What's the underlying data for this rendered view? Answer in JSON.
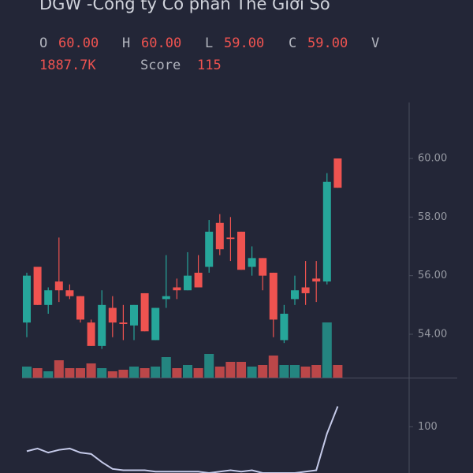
{
  "chart_data": {
    "type": "candlestick",
    "title": "DGW -Công ty Cổ phần Thế Giới Số",
    "ohlc_header": [
      {
        "key": "O",
        "value": "60.00"
      },
      {
        "key": "H",
        "value": "60.00"
      },
      {
        "key": "L",
        "value": "59.00"
      },
      {
        "key": "C",
        "value": "59.00"
      }
    ],
    "volume_key": "V",
    "volume_label": "1887.7K",
    "up_color": "#26a69a",
    "down_color": "#ef5350",
    "open": [
      54.4,
      56.3,
      55.0,
      55.8,
      55.5,
      55.3,
      54.4,
      53.6,
      54.9,
      54.4,
      54.3,
      55.4,
      53.8,
      55.2,
      55.6,
      55.5,
      56.1,
      56.3,
      57.8,
      57.3,
      57.5,
      56.3,
      56.6,
      56.1,
      53.8,
      55.2,
      55.6,
      55.9,
      55.8,
      60.0
    ],
    "high": [
      56.1,
      56.3,
      55.6,
      57.3,
      55.7,
      55.3,
      54.5,
      55.5,
      55.3,
      55.0,
      55.0,
      55.4,
      54.9,
      56.7,
      55.9,
      56.8,
      56.7,
      57.9,
      58.1,
      58.0,
      57.5,
      57.0,
      56.6,
      56.1,
      55.0,
      56.0,
      56.5,
      56.5,
      59.5,
      60.0
    ],
    "low": [
      53.9,
      55.0,
      54.7,
      55.1,
      55.2,
      54.4,
      53.6,
      53.5,
      53.9,
      53.8,
      53.8,
      54.1,
      53.8,
      54.9,
      55.2,
      55.5,
      55.6,
      56.1,
      56.7,
      56.5,
      56.2,
      56.0,
      55.5,
      53.9,
      53.7,
      55.0,
      55.0,
      55.1,
      55.7,
      59.0
    ],
    "close": [
      56.0,
      55.0,
      55.5,
      55.5,
      55.3,
      54.5,
      53.6,
      55.0,
      54.4,
      54.35,
      55.0,
      54.1,
      54.9,
      55.3,
      55.5,
      56.0,
      55.6,
      57.5,
      56.9,
      57.25,
      56.2,
      56.6,
      56.0,
      54.5,
      54.7,
      55.5,
      55.4,
      55.8,
      59.2,
      59.0
    ],
    "volume": [
      1652,
      1416,
      944,
      2596,
      1416,
      1416,
      2124,
      1416,
      944,
      1180,
      1652,
      1416,
      1652,
      3068,
      1416,
      1888,
      1416,
      3540,
      1652,
      2360,
      2360,
      1652,
      1888,
      3304,
      1888,
      1888,
      1652,
      1888,
      8260,
      1887.7
    ],
    "ylim": [
      52.52,
      61.91
    ],
    "yticks": [
      {
        "value": 54,
        "label": "54.00"
      },
      {
        "value": 56,
        "label": "56.00"
      },
      {
        "value": 58,
        "label": "58.00"
      },
      {
        "value": 60,
        "label": "60.00"
      }
    ],
    "score": {
      "name": "Score",
      "color": "#c5cae9",
      "values": [
        82,
        84,
        81,
        83,
        84,
        81,
        80,
        74,
        69,
        68,
        68,
        68,
        67,
        67,
        67,
        67,
        67,
        66,
        67,
        68,
        67,
        68,
        66,
        66,
        66,
        66,
        67,
        68,
        95,
        115
      ],
      "ylim": [
        66,
        135
      ],
      "yticks": [
        100
      ]
    }
  }
}
